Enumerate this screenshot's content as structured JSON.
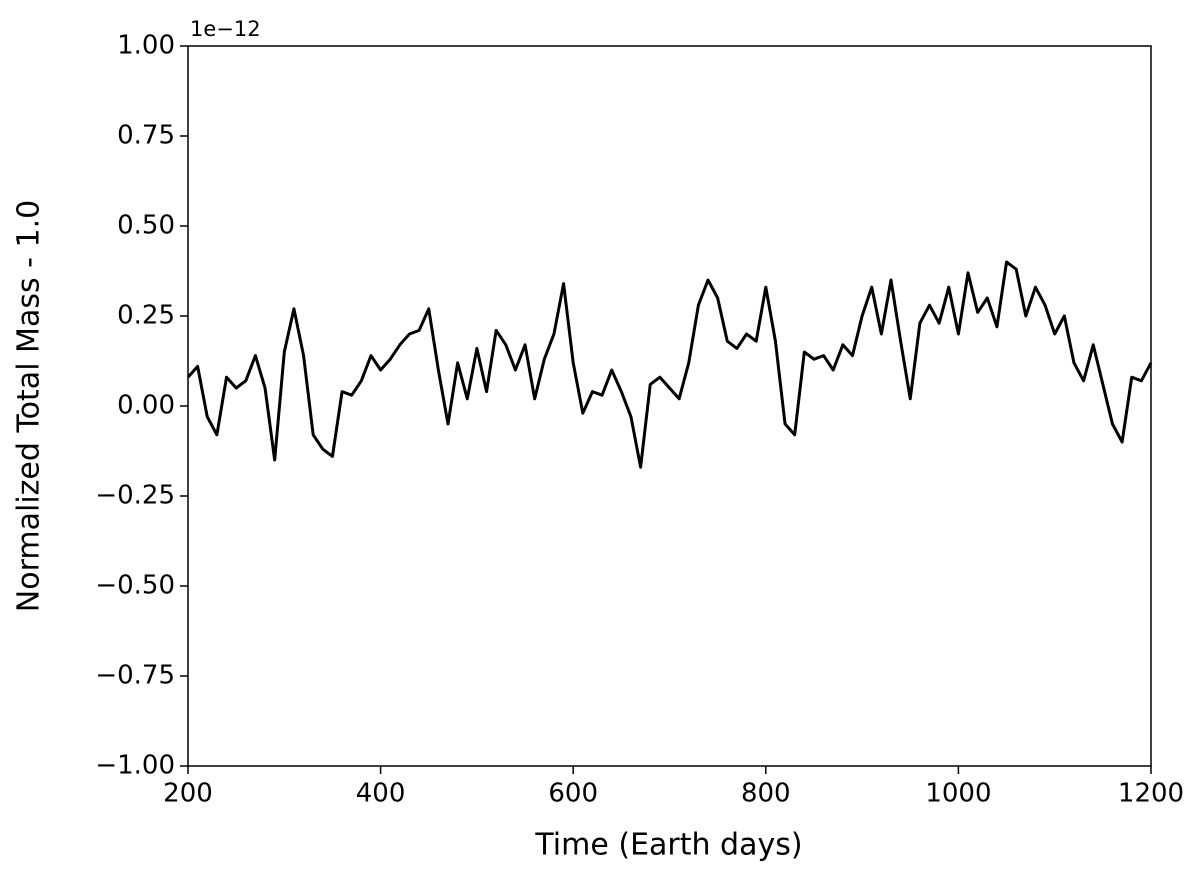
{
  "chart_data": {
    "type": "line",
    "x_label": "Time (Earth days)",
    "y_label": "Normalized Total Mass - 1.0",
    "offset_label": "1e−12",
    "xlim": [
      200,
      1200
    ],
    "xticks": [
      200,
      400,
      600,
      800,
      1000,
      1200
    ],
    "ylim": [
      -1,
      1
    ],
    "yticks": [
      {
        "value": -1,
        "label": "−1.00"
      },
      {
        "value": -0.75,
        "label": "−0.75"
      },
      {
        "value": -0.5,
        "label": "−0.50"
      },
      {
        "value": -0.25,
        "label": "−0.25"
      },
      {
        "value": 0,
        "label": "0.00"
      },
      0.25,
      {
        "value": 0.5,
        "label": "0.50"
      },
      0.75,
      {
        "value": 1,
        "label": "1.00"
      }
    ],
    "grid": false,
    "series": [
      {
        "color": "#000000",
        "x": [
          200,
          210,
          220,
          230,
          240,
          250,
          260,
          270,
          280,
          290,
          300,
          310,
          320,
          330,
          340,
          350,
          360,
          370,
          380,
          390,
          400,
          410,
          420,
          430,
          440,
          450,
          460,
          470,
          480,
          490,
          500,
          510,
          520,
          530,
          540,
          550,
          560,
          570,
          580,
          590,
          600,
          610,
          620,
          630,
          640,
          650,
          660,
          670,
          680,
          690,
          700,
          710,
          720,
          730,
          740,
          750,
          760,
          770,
          780,
          790,
          800,
          810,
          820,
          830,
          840,
          850,
          860,
          870,
          880,
          890,
          900,
          910,
          920,
          930,
          940,
          950,
          960,
          970,
          980,
          990,
          1000,
          1010,
          1020,
          1030,
          1040,
          1050,
          1060,
          1070,
          1080,
          1090,
          1100,
          1110,
          1120,
          1130,
          1140,
          1150,
          1160,
          1170,
          1180,
          1190,
          1200
        ],
        "values": [
          0.08,
          0.11,
          -0.03,
          -0.08,
          0.08,
          0.05,
          0.07,
          0.14,
          0.05,
          -0.15,
          0.15,
          0.27,
          0.14,
          -0.08,
          -0.12,
          -0.14,
          0.04,
          0.03,
          0.07,
          0.14,
          0.1,
          0.13,
          0.17,
          0.2,
          0.21,
          0.27,
          0.1,
          -0.05,
          0.12,
          0.02,
          0.16,
          0.04,
          0.21,
          0.17,
          0.1,
          0.17,
          0.02,
          0.13,
          0.2,
          0.34,
          0.12,
          -0.02,
          0.04,
          0.03,
          0.1,
          0.04,
          -0.03,
          -0.17,
          0.06,
          0.08,
          0.05,
          0.02,
          0.12,
          0.28,
          0.35,
          0.3,
          0.18,
          0.16,
          0.2,
          0.18,
          0.33,
          0.18,
          -0.05,
          -0.08,
          0.15,
          0.13,
          0.14,
          0.1,
          0.17,
          0.14,
          0.25,
          0.33,
          0.2,
          0.35,
          0.18,
          0.02,
          0.23,
          0.28,
          0.23,
          0.33,
          0.2,
          0.37,
          0.26,
          0.3,
          0.22,
          0.4,
          0.38,
          0.25,
          0.33,
          0.28,
          0.2,
          0.25,
          0.12,
          0.07,
          0.17,
          0.06,
          -0.05,
          -0.1,
          0.08,
          0.07,
          0.12
        ]
      }
    ]
  }
}
